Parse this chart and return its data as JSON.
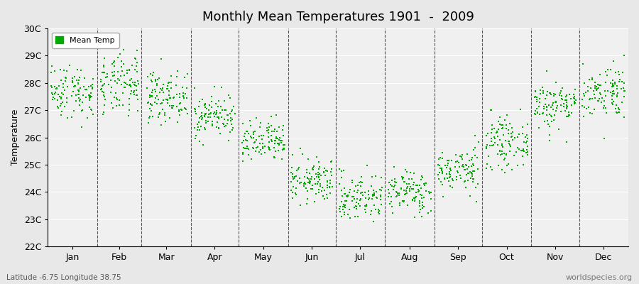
{
  "title": "Monthly Mean Temperatures 1901  -  2009",
  "ylabel": "Temperature",
  "xlabel_labels": [
    "Jan",
    "Feb",
    "Mar",
    "Apr",
    "May",
    "Jun",
    "Jul",
    "Aug",
    "Sep",
    "Oct",
    "Nov",
    "Dec"
  ],
  "subtitle": "Latitude -6.75 Longitude 38.75",
  "watermark": "worldspecies.org",
  "ylim": [
    22,
    30
  ],
  "yticks": [
    22,
    23,
    24,
    25,
    26,
    27,
    28,
    29,
    30
  ],
  "ytick_labels": [
    "22C",
    "23C",
    "24C",
    "25C",
    "26C",
    "27C",
    "28C",
    "29C",
    "30C"
  ],
  "background_color": "#e8e8e8",
  "plot_bg_color": "#f0f0f0",
  "dot_color": "#00aa00",
  "dot_size": 4,
  "legend_label": "Mean Temp",
  "monthly_means": [
    27.7,
    27.9,
    27.5,
    26.8,
    25.8,
    24.4,
    23.8,
    24.0,
    24.8,
    25.8,
    27.2,
    27.7
  ],
  "monthly_stds": [
    0.5,
    0.55,
    0.45,
    0.4,
    0.4,
    0.4,
    0.45,
    0.4,
    0.4,
    0.45,
    0.45,
    0.5
  ],
  "n_years": 109,
  "seed": 42
}
